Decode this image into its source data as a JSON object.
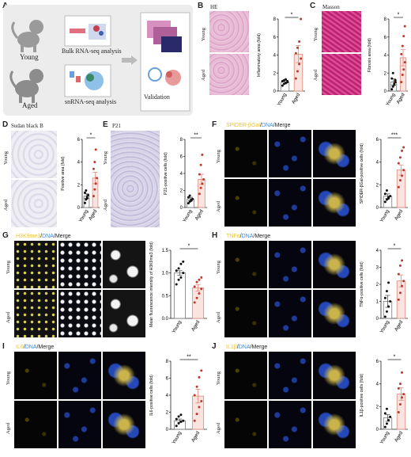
{
  "panels": {
    "A": "A",
    "B": "B",
    "C": "C",
    "D": "D",
    "E": "E",
    "F": "F",
    "G": "G",
    "H": "H",
    "I": "I",
    "J": "J"
  },
  "conditions": {
    "young": "Young",
    "aged": "Aged"
  },
  "schematic": {
    "bulk": "Bulk RNA-seq analysis",
    "sn": "snRNA-seq analysis",
    "validation": "Validation"
  },
  "stains": {
    "he": "HE",
    "masson": "Masson",
    "sudan": "Sudan black B",
    "p21": "P21"
  },
  "fluor": {
    "F": {
      "marker": "SPiDER-βGal",
      "dna": "DNA",
      "merge": "Merge"
    },
    "G": {
      "marker": "H3K9me3",
      "dna": "DNA",
      "merge": "Merge"
    },
    "H": {
      "marker": "TNFα",
      "dna": "DNA",
      "merge": "Merge"
    },
    "I": {
      "marker": "IL6",
      "dna": "DNA",
      "merge": "Merge"
    },
    "J": {
      "marker": "IL1β",
      "dna": "DNA",
      "merge": "Merge"
    }
  },
  "colors": {
    "marker": "#e8c43a",
    "dna": "#3b8de0",
    "young_dot": "#111111",
    "aged_dot": "#c0392b",
    "bar_line": "#e08a7a"
  },
  "chart_data": [
    {
      "id": "B",
      "type": "bar",
      "ylabel": "Inflammatory area (fold)",
      "categories": [
        "Young",
        "Aged"
      ],
      "ylim": [
        0,
        8
      ],
      "ticks": [
        0,
        2,
        4,
        6,
        8
      ],
      "means": [
        1,
        4.1
      ],
      "sem": [
        0.2,
        0.95
      ],
      "sig": "*",
      "points": [
        [
          0.6,
          0.8,
          0.9,
          1.0,
          1.1,
          1.2,
          1.3,
          1.1
        ],
        [
          1.4,
          2.2,
          3.0,
          3.6,
          4.2,
          4.8,
          5.5,
          8.0
        ]
      ]
    },
    {
      "id": "C",
      "type": "bar",
      "ylabel": "Fibrosis area (fold)",
      "categories": [
        "Young",
        "Aged"
      ],
      "ylim": [
        0,
        8
      ],
      "ticks": [
        0,
        2,
        4,
        6,
        8
      ],
      "means": [
        1,
        3.7
      ],
      "sem": [
        0.35,
        0.9
      ],
      "sig": "*",
      "points": [
        [
          0.2,
          0.5,
          0.8,
          1.0,
          1.4,
          2.0,
          0.7,
          1.2
        ],
        [
          1.0,
          1.8,
          2.4,
          3.2,
          4.1,
          5.0,
          6.1,
          7.2
        ]
      ]
    },
    {
      "id": "D",
      "type": "bar",
      "ylabel": "Positive area (fold)",
      "categories": [
        "Young",
        "Aged"
      ],
      "ylim": [
        0,
        6
      ],
      "ticks": [
        0,
        2,
        4,
        6
      ],
      "means": [
        1,
        2.6
      ],
      "sem": [
        0.2,
        0.5
      ],
      "sig": "*",
      "points": [
        [
          0.4,
          0.7,
          0.9,
          1.1,
          1.3,
          1.5,
          0.8
        ],
        [
          1.0,
          1.6,
          2.1,
          2.6,
          3.4,
          4.0,
          5.1
        ]
      ]
    },
    {
      "id": "E",
      "type": "bar",
      "ylabel": "P21-positive cells (fold)",
      "categories": [
        "Young",
        "Aged"
      ],
      "ylim": [
        0,
        8
      ],
      "ticks": [
        0,
        2,
        4,
        6,
        8
      ],
      "means": [
        1,
        3.3
      ],
      "sem": [
        0.2,
        0.6
      ],
      "sig": "**",
      "points": [
        [
          0.5,
          0.7,
          0.9,
          1.0,
          1.2,
          1.4,
          0.8
        ],
        [
          1.6,
          2.3,
          2.8,
          3.3,
          3.9,
          5.0,
          6.2
        ]
      ]
    },
    {
      "id": "F",
      "type": "bar",
      "ylabel": "SPiDER-βGal-positive cells (fold)",
      "categories": [
        "Young",
        "Aged"
      ],
      "ylim": [
        0,
        6
      ],
      "ticks": [
        0,
        2,
        4,
        6
      ],
      "means": [
        1,
        3.3
      ],
      "sem": [
        0.2,
        0.45
      ],
      "sig": "***",
      "points": [
        [
          0.5,
          0.7,
          0.8,
          1.0,
          1.2,
          1.5,
          0.9
        ],
        [
          1.8,
          2.4,
          2.8,
          3.3,
          3.9,
          4.4,
          5.0,
          5.3
        ]
      ]
    },
    {
      "id": "G",
      "type": "bar",
      "ylabel": "Mean fluorescence intensity of H3K9me3 (fold)",
      "categories": [
        "Young",
        "Aged"
      ],
      "ylim": [
        0,
        1.5
      ],
      "ticks": [
        0.0,
        0.5,
        1.0,
        1.5
      ],
      "means": [
        1.0,
        0.67
      ],
      "sem": [
        0.05,
        0.07
      ],
      "sig": "*",
      "points": [
        [
          0.75,
          0.85,
          0.9,
          1.0,
          1.05,
          1.1,
          1.2,
          1.25
        ],
        [
          0.35,
          0.45,
          0.55,
          0.65,
          0.7,
          0.8,
          0.85,
          0.9
        ]
      ]
    },
    {
      "id": "H",
      "type": "bar",
      "ylabel": "TNFα-positive cells (fold)",
      "categories": [
        "Young",
        "Aged"
      ],
      "ylim": [
        0,
        4
      ],
      "ticks": [
        0,
        1,
        2,
        3,
        4
      ],
      "means": [
        1,
        2.2
      ],
      "sem": [
        0.35,
        0.35
      ],
      "sig": "*",
      "points": [
        [
          0.1,
          0.4,
          0.7,
          1.0,
          1.2,
          1.6,
          2.1
        ],
        [
          1.1,
          1.5,
          1.9,
          2.2,
          2.6,
          3.1,
          3.4
        ]
      ]
    },
    {
      "id": "I",
      "type": "bar",
      "ylabel": "IL6-positive cells (fold)",
      "categories": [
        "Young",
        "Aged"
      ],
      "ylim": [
        0,
        8
      ],
      "ticks": [
        0,
        2,
        4,
        6,
        8
      ],
      "means": [
        1,
        3.9
      ],
      "sem": [
        0.2,
        0.8
      ],
      "sig": "**",
      "points": [
        [
          0.4,
          0.7,
          0.9,
          1.0,
          1.2,
          1.5,
          1.7
        ],
        [
          1.0,
          1.8,
          2.6,
          3.3,
          4.0,
          5.0,
          6.1,
          6.9
        ]
      ]
    },
    {
      "id": "J",
      "type": "bar",
      "ylabel": "IL1β-positive cells (fold)",
      "categories": [
        "Young",
        "Aged"
      ],
      "ylim": [
        0,
        6
      ],
      "ticks": [
        0,
        2,
        4,
        6
      ],
      "means": [
        1,
        3.1
      ],
      "sem": [
        0.3,
        0.55
      ],
      "sig": "*",
      "points": [
        [
          0.2,
          0.5,
          0.8,
          1.1,
          1.4,
          1.8
        ],
        [
          1.5,
          2.2,
          2.8,
          3.1,
          3.6,
          4.0,
          5.0
        ]
      ]
    }
  ]
}
